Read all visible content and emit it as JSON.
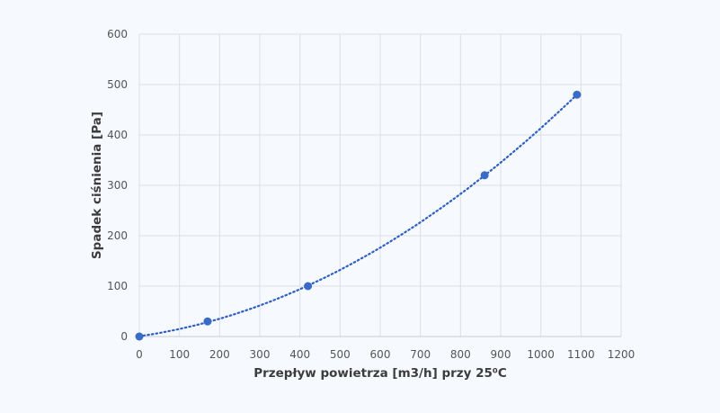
{
  "chart_data": {
    "type": "scatter",
    "title": "",
    "xlabel": "Przepływ powietrza [m3/h] przy 25⁰C",
    "ylabel": "Spadek ciśnienia [Pa]",
    "xlim": [
      0,
      1200
    ],
    "ylim": [
      0,
      600
    ],
    "xticks": [
      "0",
      "100",
      "200",
      "300",
      "400",
      "500",
      "600",
      "700",
      "800",
      "900",
      "1000",
      "1100",
      "1200"
    ],
    "yticks": [
      "0",
      "100",
      "200",
      "300",
      "400",
      "500",
      "600"
    ],
    "grid": true,
    "trendline": "polynomial order 2, dotted",
    "points": [
      {
        "x": 0,
        "y": 0
      },
      {
        "x": 170,
        "y": 30
      },
      {
        "x": 420,
        "y": 100
      },
      {
        "x": 860,
        "y": 320
      },
      {
        "x": 1090,
        "y": 480
      }
    ],
    "colors": {
      "marker": "#3a6bc6",
      "trendline": "#2f5fc4",
      "grid": "#dcdfe3",
      "background": "#f6f9fd"
    }
  }
}
